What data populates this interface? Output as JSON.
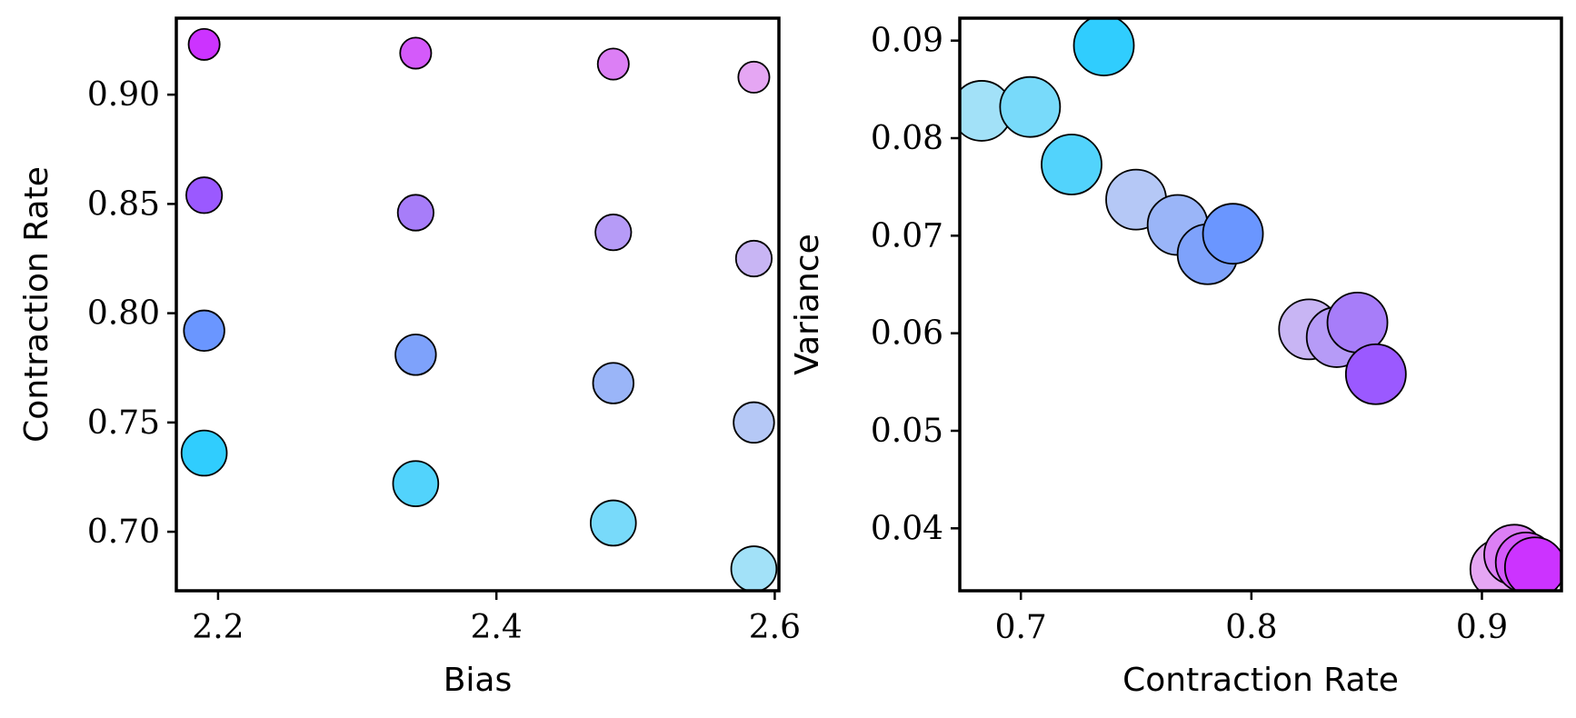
{
  "chart_data": [
    {
      "type": "scatter",
      "xlabel": "Bias",
      "ylabel": "Contraction Rate",
      "xlim": [
        2.17,
        2.603
      ],
      "ylim": [
        0.673,
        0.935
      ],
      "xticks": [
        2.2,
        2.4,
        2.6
      ],
      "xtick_labels": [
        "2.2",
        "2.4",
        "2.6"
      ],
      "yticks": [
        0.7,
        0.75,
        0.8,
        0.85,
        0.9
      ],
      "ytick_labels": [
        "0.70",
        "0.75",
        "0.80",
        "0.85",
        "0.90"
      ],
      "grid": false,
      "points": [
        {
          "x": 2.19,
          "y": 0.923,
          "color": "#cc33ff",
          "size": 0.35
        },
        {
          "x": 2.19,
          "y": 0.854,
          "color": "#9b59ff",
          "size": 0.45
        },
        {
          "x": 2.19,
          "y": 0.792,
          "color": "#6a96ff",
          "size": 0.55
        },
        {
          "x": 2.19,
          "y": 0.736,
          "color": "#30cdfe",
          "size": 0.65
        },
        {
          "x": 2.342,
          "y": 0.919,
          "color": "#d45afa",
          "size": 0.35
        },
        {
          "x": 2.342,
          "y": 0.846,
          "color": "#a77df9",
          "size": 0.45
        },
        {
          "x": 2.342,
          "y": 0.781,
          "color": "#7ea2fb",
          "size": 0.55
        },
        {
          "x": 2.342,
          "y": 0.722,
          "color": "#52d3fc",
          "size": 0.65
        },
        {
          "x": 2.484,
          "y": 0.914,
          "color": "#dc7ff5",
          "size": 0.35
        },
        {
          "x": 2.484,
          "y": 0.837,
          "color": "#b69bf7",
          "size": 0.45
        },
        {
          "x": 2.484,
          "y": 0.768,
          "color": "#9ab5f8",
          "size": 0.55
        },
        {
          "x": 2.484,
          "y": 0.704,
          "color": "#78dafa",
          "size": 0.65
        },
        {
          "x": 2.585,
          "y": 0.908,
          "color": "#e5a6f3",
          "size": 0.35
        },
        {
          "x": 2.585,
          "y": 0.825,
          "color": "#c8b5f4",
          "size": 0.45
        },
        {
          "x": 2.585,
          "y": 0.75,
          "color": "#b5c8f6",
          "size": 0.55
        },
        {
          "x": 2.585,
          "y": 0.683,
          "color": "#a2e1f8",
          "size": 0.65
        }
      ]
    },
    {
      "type": "scatter",
      "xlabel": "Contraction Rate",
      "ylabel": "Variance",
      "xlim": [
        0.6735,
        0.9345
      ],
      "ylim": [
        0.0336,
        0.0923
      ],
      "xticks": [
        0.7,
        0.8,
        0.9
      ],
      "xtick_labels": [
        "0.7",
        "0.8",
        "0.9"
      ],
      "yticks": [
        0.04,
        0.05,
        0.06,
        0.07,
        0.08,
        0.09
      ],
      "ytick_labels": [
        "0.04",
        "0.05",
        "0.06",
        "0.07",
        "0.08",
        "0.09"
      ],
      "grid": false,
      "points": [
        {
          "x": 0.683,
          "y": 0.0828,
          "color": "#a2e1f8",
          "size": 1
        },
        {
          "x": 0.704,
          "y": 0.0832,
          "color": "#78dafa",
          "size": 1
        },
        {
          "x": 0.722,
          "y": 0.0773,
          "color": "#52d3fc",
          "size": 1
        },
        {
          "x": 0.736,
          "y": 0.0895,
          "color": "#30cdfe",
          "size": 1
        },
        {
          "x": 0.75,
          "y": 0.0737,
          "color": "#b5c8f6",
          "size": 1
        },
        {
          "x": 0.768,
          "y": 0.0711,
          "color": "#9ab5f8",
          "size": 1
        },
        {
          "x": 0.781,
          "y": 0.0681,
          "color": "#7ea2fb",
          "size": 1
        },
        {
          "x": 0.792,
          "y": 0.0702,
          "color": "#6a96ff",
          "size": 1
        },
        {
          "x": 0.825,
          "y": 0.0604,
          "color": "#c8b5f4",
          "size": 1
        },
        {
          "x": 0.837,
          "y": 0.0596,
          "color": "#b69bf7",
          "size": 1
        },
        {
          "x": 0.846,
          "y": 0.0611,
          "color": "#a77df9",
          "size": 1
        },
        {
          "x": 0.854,
          "y": 0.0558,
          "color": "#9b59ff",
          "size": 1
        },
        {
          "x": 0.908,
          "y": 0.0358,
          "color": "#e5a6f3",
          "size": 1
        },
        {
          "x": 0.914,
          "y": 0.0373,
          "color": "#dc7ff5",
          "size": 1
        },
        {
          "x": 0.919,
          "y": 0.0365,
          "color": "#d45afa",
          "size": 1
        },
        {
          "x": 0.923,
          "y": 0.036,
          "color": "#cc33ff",
          "size": 1
        }
      ]
    }
  ]
}
